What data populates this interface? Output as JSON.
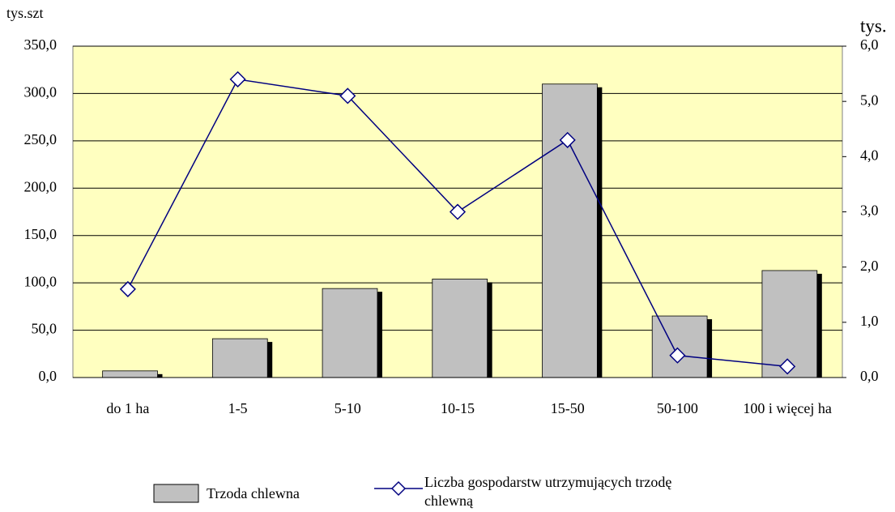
{
  "chart_data": {
    "type": "bar_line",
    "y_label": "tys.szt",
    "y2_label": "tys.",
    "categories": [
      "do 1 ha",
      "1-5",
      "5-10",
      "10-15",
      "15-50",
      "50-100",
      "100 i więcej ha"
    ],
    "series": [
      {
        "name": "Trzoda chlewna",
        "type": "bar",
        "color": "#c0c0c0",
        "values": [
          7,
          41,
          94,
          104,
          310,
          65,
          113
        ]
      },
      {
        "name": "Liczba gospodarstw utrzymujących trzodę chlewną",
        "type": "line",
        "axis": "y2",
        "color": "#000080",
        "values": [
          1.6,
          5.4,
          5.1,
          3.0,
          4.3,
          0.4,
          0.2
        ]
      }
    ],
    "ylim": [
      0,
      350
    ],
    "yticks": [
      {
        "value": 0,
        "label": "0,0"
      },
      {
        "value": 50,
        "label": "50,0"
      },
      {
        "value": 100,
        "label": "100,0"
      },
      {
        "value": 150,
        "label": "150,0"
      },
      {
        "value": 200,
        "label": "200,0"
      },
      {
        "value": 250,
        "label": "250,0"
      },
      {
        "value": 300,
        "label": "300,0"
      },
      {
        "value": 350,
        "label": "350,0"
      }
    ],
    "y2lim": [
      0,
      6
    ],
    "y2ticks": [
      {
        "value": 0,
        "label": "0,0"
      },
      {
        "value": 1,
        "label": "1,0"
      },
      {
        "value": 2,
        "label": "2,0"
      },
      {
        "value": 3,
        "label": "3,0"
      },
      {
        "value": 4,
        "label": "4,0"
      },
      {
        "value": 5,
        "label": "5,0"
      },
      {
        "value": 6,
        "label": "6,0"
      }
    ],
    "plot_background": "#ffffc0",
    "grid": true
  }
}
